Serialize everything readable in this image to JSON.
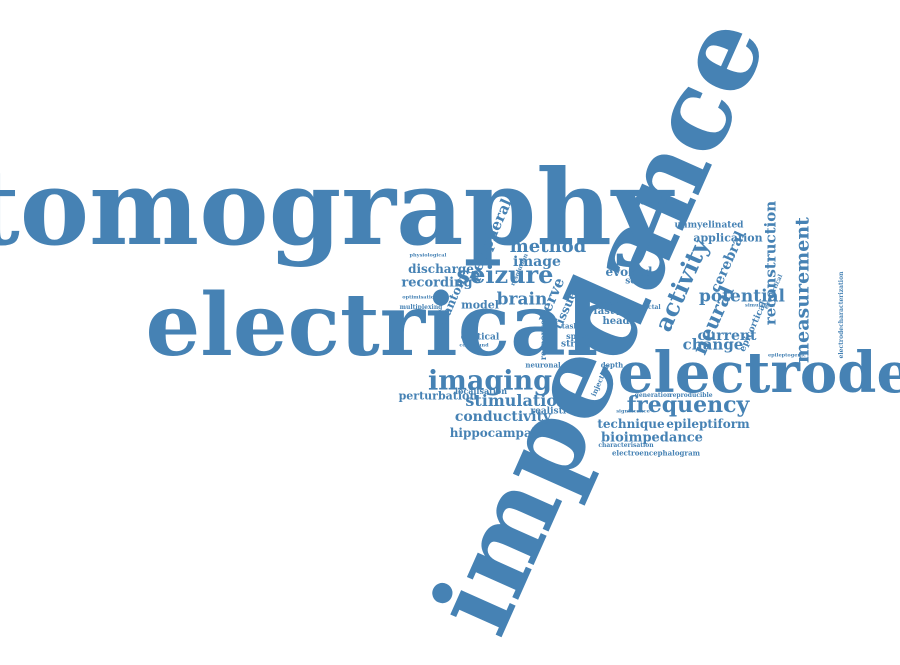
{
  "word_cloud": {
    "color": "#4682b4",
    "words": [
      "impedance",
      "tomography",
      "electrical",
      "electrode",
      "imaging",
      "seizure",
      "activity",
      "frequency",
      "stimulation",
      "method",
      "potential",
      "measurement",
      "neural",
      "conductivity",
      "reconstruction",
      "bioimpedance",
      "brain",
      "image",
      "peripheral",
      "change",
      "current",
      "cerebral",
      "hippocampal",
      "recording",
      "discharge",
      "technique",
      "epileptiform",
      "perturbation",
      "model",
      "nerve",
      "tissue",
      "phantom",
      "evoked",
      "application",
      "unmyelinated",
      "modelling",
      "cortical",
      "epicortical",
      "realistic",
      "localisation",
      "stroke",
      "head",
      "fast",
      "source",
      "spike",
      "ictal",
      "interictal",
      "electroencephalogram",
      "characterisation",
      "depth",
      "neuronal",
      "generation",
      "reproducible",
      "multiplexing",
      "optimisation",
      "physiological",
      "electrodecharacterization",
      "ecocortical",
      "epileptogenic",
      "significance",
      "error",
      "simulation",
      "task",
      "resolution",
      "injection",
      "compound",
      "response"
    ]
  }
}
